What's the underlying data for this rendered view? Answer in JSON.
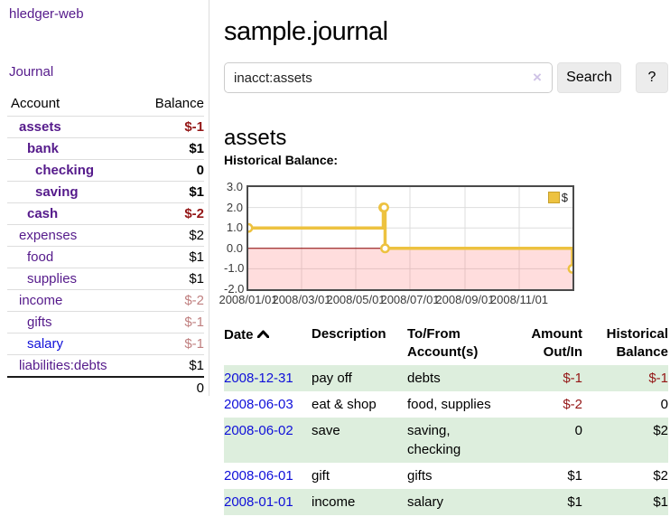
{
  "colors": {
    "link_purple": "#551a8b",
    "link_blue": "#0f0fd9",
    "negative_strong": "#941616",
    "negative_soft": "#c08080",
    "row_stripe_green": "#ddeedd",
    "button_gray": "#ececec",
    "chart_gold": "#edc240"
  },
  "sidebar": {
    "app_title": "hledger-web",
    "nav": {
      "journal": "Journal"
    },
    "accounts_table": {
      "headers": {
        "account": "Account",
        "balance": "Balance"
      },
      "rows": [
        {
          "name": "assets",
          "depth": 1,
          "bold": true,
          "balance": "$-1",
          "balance_class": "neg-strong",
          "link_color": "purple"
        },
        {
          "name": "bank",
          "depth": 2,
          "bold": true,
          "balance": "$1",
          "balance_class": "pos",
          "link_color": "purple"
        },
        {
          "name": "checking",
          "depth": 3,
          "bold": true,
          "balance": "0",
          "balance_class": "pos",
          "link_color": "purple"
        },
        {
          "name": "saving",
          "depth": 3,
          "bold": true,
          "balance": "$1",
          "balance_class": "pos",
          "link_color": "purple"
        },
        {
          "name": "cash",
          "depth": 2,
          "bold": true,
          "balance": "$-2",
          "balance_class": "neg-strong",
          "link_color": "purple"
        },
        {
          "name": "expenses",
          "depth": 1,
          "bold": false,
          "balance": "$2",
          "balance_class": "pos",
          "link_color": "purple"
        },
        {
          "name": "food",
          "depth": 2,
          "bold": false,
          "balance": "$1",
          "balance_class": "pos",
          "link_color": "purple"
        },
        {
          "name": "supplies",
          "depth": 2,
          "bold": false,
          "balance": "$1",
          "balance_class": "pos",
          "link_color": "purple"
        },
        {
          "name": "income",
          "depth": 1,
          "bold": false,
          "balance": "$-2",
          "balance_class": "neg-soft",
          "link_color": "purple"
        },
        {
          "name": "gifts",
          "depth": 2,
          "bold": false,
          "balance": "$-1",
          "balance_class": "neg-soft",
          "link_color": "purple"
        },
        {
          "name": "salary",
          "depth": 2,
          "bold": false,
          "balance": "$-1",
          "balance_class": "neg-soft",
          "link_color": "blue"
        },
        {
          "name": "liabilities:debts",
          "depth": 1,
          "bold": false,
          "balance": "$1",
          "balance_class": "pos",
          "link_color": "purple"
        }
      ],
      "total": "0"
    }
  },
  "header": {
    "title": "sample.journal"
  },
  "search": {
    "value": "inacct:assets",
    "clear_icon": "×",
    "button": "Search",
    "help_button": "?"
  },
  "account_page": {
    "heading": "assets",
    "chart_label": "Historical Balance:"
  },
  "chart_data": {
    "type": "line",
    "step": true,
    "title": "Historical Balance",
    "legend": "$",
    "legend_position": "top-right",
    "grid": true,
    "ylim": [
      -2,
      3
    ],
    "y_ticks": [
      3.0,
      2.0,
      1.0,
      0.0,
      -1.0,
      -2.0
    ],
    "y_tick_labels": [
      "3.0",
      "2.0",
      "1.0",
      "0.0",
      "-1.0",
      "-2.0"
    ],
    "x_range_days": 365,
    "x_start_date": "2008-01-01",
    "x_ticks": [
      {
        "label": "2008/01/01",
        "day": 0
      },
      {
        "label": "2008/03/01",
        "day": 60
      },
      {
        "label": "2008/05/01",
        "day": 121
      },
      {
        "label": "2008/07/01",
        "day": 182
      },
      {
        "label": "2008/09/01",
        "day": 244
      },
      {
        "label": "2008/11/01",
        "day": 305
      }
    ],
    "series": [
      {
        "name": "$",
        "color": "#edc240",
        "points": [
          {
            "date": "2008-01-01",
            "value": 1
          },
          {
            "date": "2008-06-01",
            "value": 2
          },
          {
            "date": "2008-06-02",
            "value": 2
          },
          {
            "date": "2008-06-03",
            "value": 0
          },
          {
            "date": "2008-12-31",
            "value": -1
          }
        ]
      }
    ],
    "negative_region_fill": "rgba(255,120,120,0.25)",
    "zero_line_color": "#8b0000",
    "grid_color": "#dddddd",
    "border_color": "#4a4a4a"
  },
  "register_table": {
    "headers": {
      "date": "Date",
      "description": "Description",
      "tofrom": "To/From Account(s)",
      "amount": "Amount Out/In",
      "balance": "Historical Balance"
    },
    "rows": [
      {
        "date": "2008-12-31",
        "description": "pay off",
        "accounts": "debts",
        "amount": "$-1",
        "amount_neg": true,
        "balance": "$-1",
        "balance_neg": true
      },
      {
        "date": "2008-06-03",
        "description": "eat & shop",
        "accounts": "food, supplies",
        "amount": "$-2",
        "amount_neg": true,
        "balance": "0",
        "balance_neg": false
      },
      {
        "date": "2008-06-02",
        "description": "save",
        "accounts": "saving, checking",
        "amount": "0",
        "amount_neg": false,
        "balance": "$2",
        "balance_neg": false
      },
      {
        "date": "2008-06-01",
        "description": "gift",
        "accounts": "gifts",
        "amount": "$1",
        "amount_neg": false,
        "balance": "$2",
        "balance_neg": false
      },
      {
        "date": "2008-01-01",
        "description": "income",
        "accounts": "salary",
        "amount": "$1",
        "amount_neg": false,
        "balance": "$1",
        "balance_neg": false
      }
    ]
  }
}
